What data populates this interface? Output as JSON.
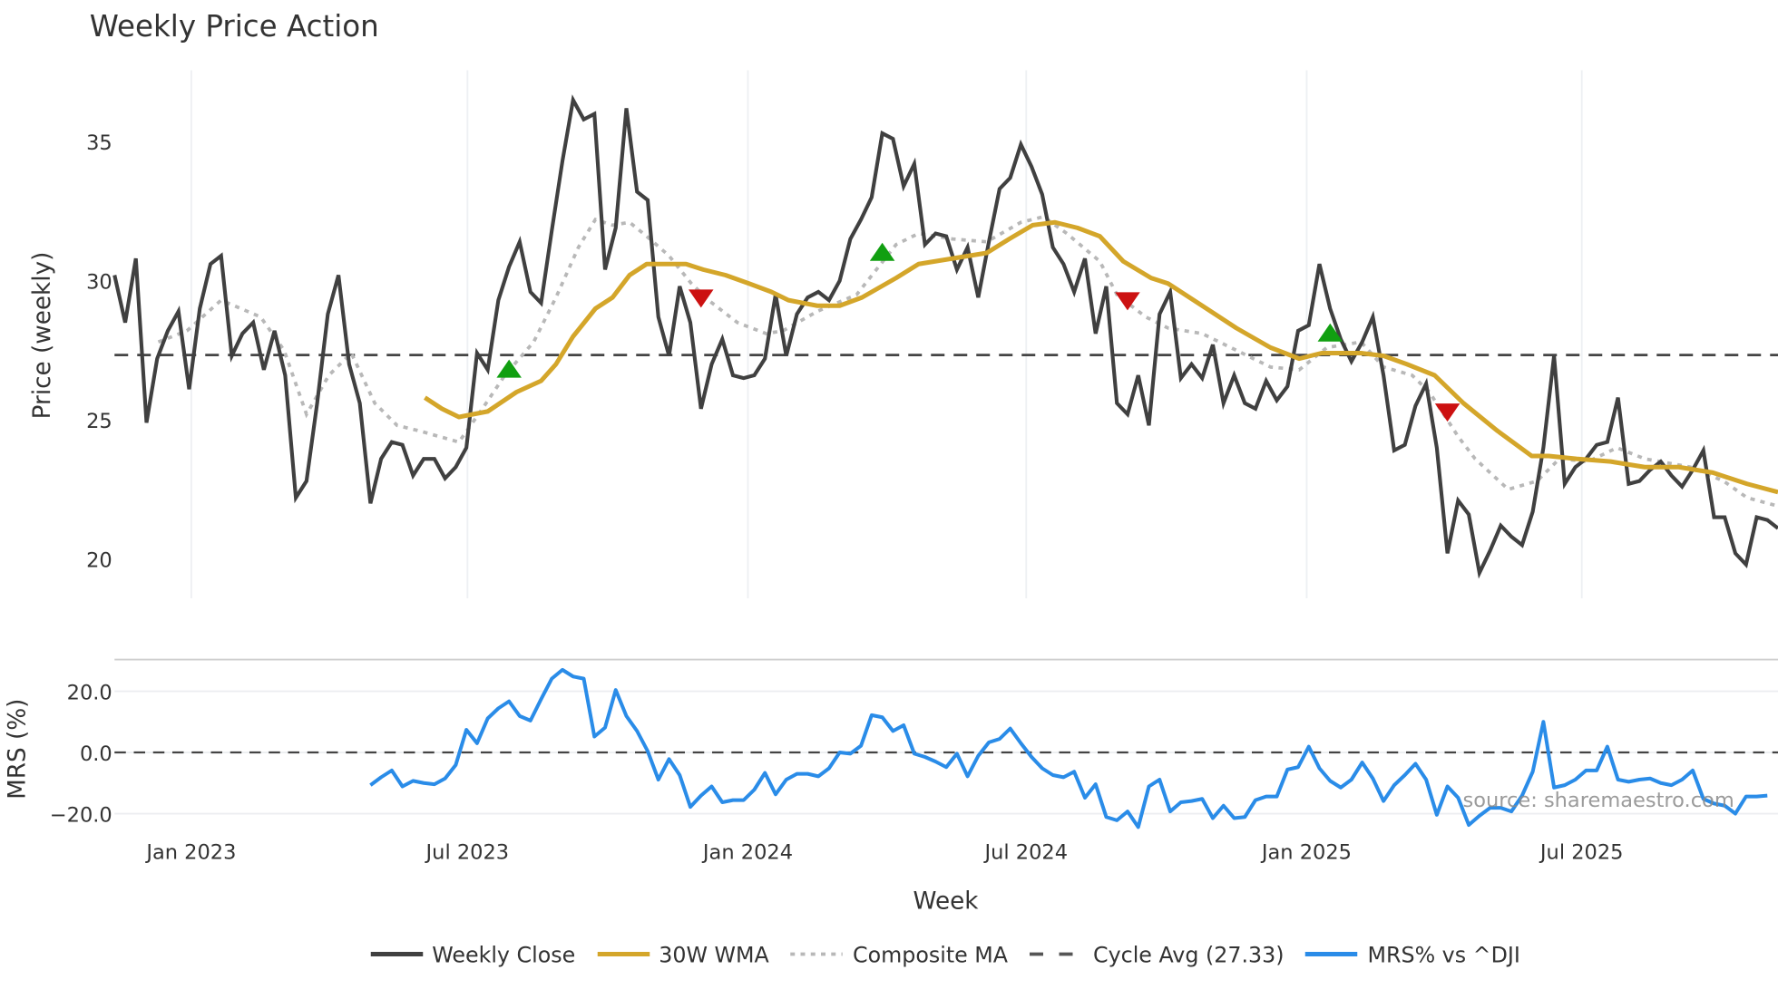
{
  "chart_data": [
    {
      "type": "line",
      "title": "Weekly Price Action",
      "ylabel": "Price (weekly)",
      "ylim": [
        18.6,
        37.5
      ],
      "yticks": [
        20,
        25,
        30,
        35
      ],
      "x_index_range": [
        0,
        156
      ],
      "xticks": [
        {
          "index": 7.2,
          "label": "Jan 2023"
        },
        {
          "index": 33.1,
          "label": "Jul 2023"
        },
        {
          "index": 59.4,
          "label": "Jan 2024"
        },
        {
          "index": 85.5,
          "label": "Jul 2024"
        },
        {
          "index": 111.8,
          "label": "Jan 2025"
        },
        {
          "index": 137.6,
          "label": "Jul 2025"
        }
      ],
      "grid": "vertical",
      "series": [
        {
          "name": "Weekly Close",
          "color": "#404040",
          "values": [
            30.2,
            28.5,
            30.8,
            24.9,
            27.2,
            28.2,
            28.9,
            26.1,
            29.0,
            30.6,
            30.9,
            27.3,
            28.1,
            28.5,
            26.8,
            28.2,
            26.6,
            22.2,
            22.8,
            25.6,
            28.8,
            30.2,
            27.0,
            25.6,
            22.0,
            23.6,
            24.2,
            24.1,
            23.0,
            23.6,
            23.6,
            22.9,
            23.3,
            24.0,
            27.4,
            26.8,
            29.3,
            30.5,
            31.4,
            29.6,
            29.2,
            31.8,
            34.3,
            36.5,
            35.8,
            36.0,
            30.4,
            31.9,
            36.2,
            33.2,
            32.9,
            28.7,
            27.3,
            29.8,
            28.5,
            25.4,
            27.0,
            27.9,
            26.6,
            26.5,
            26.6,
            27.2,
            29.5,
            27.3,
            28.8,
            29.4,
            29.6,
            29.3,
            30.0,
            31.5,
            32.2,
            33.0,
            35.3,
            35.1,
            33.4,
            34.2,
            31.3,
            31.7,
            31.6,
            30.4,
            31.2,
            29.4,
            31.4,
            33.3,
            33.7,
            34.9,
            34.1,
            33.1,
            31.2,
            30.6,
            29.6,
            30.8,
            28.1,
            29.8,
            25.6,
            25.2,
            26.6,
            24.8,
            28.8,
            29.6,
            26.5,
            27.0,
            26.5,
            27.7,
            25.6,
            26.6,
            25.6,
            25.4,
            26.4,
            25.7,
            26.2,
            28.2,
            28.4,
            30.6,
            29.0,
            27.9,
            27.1,
            27.8,
            28.7,
            26.6,
            23.9,
            24.1,
            25.5,
            26.3,
            24.0,
            20.2,
            22.1,
            21.6,
            19.5,
            20.3,
            21.2,
            20.8,
            20.5,
            21.7,
            24.0,
            27.3,
            22.7,
            23.3,
            23.6,
            24.1,
            24.2,
            25.8,
            22.7,
            22.8,
            23.2,
            23.5,
            23.0,
            22.6,
            23.2,
            23.9,
            21.5,
            21.5,
            20.2,
            19.8,
            21.5,
            21.4,
            21.1
          ]
        },
        {
          "name": "30W WMA",
          "color": "#d4a62a",
          "points": [
            [
              29.1,
              25.8
            ],
            [
              30.7,
              25.4
            ],
            [
              32.3,
              25.1
            ],
            [
              35.0,
              25.3
            ],
            [
              37.7,
              26.0
            ],
            [
              40.0,
              26.4
            ],
            [
              41.4,
              27.0
            ],
            [
              43.0,
              28.0
            ],
            [
              45.1,
              29.0
            ],
            [
              46.7,
              29.4
            ],
            [
              48.3,
              30.2
            ],
            [
              49.9,
              30.6
            ],
            [
              51.5,
              30.6
            ],
            [
              53.6,
              30.6
            ],
            [
              55.2,
              30.4
            ],
            [
              57.3,
              30.2
            ],
            [
              59.5,
              29.9
            ],
            [
              61.6,
              29.6
            ],
            [
              63.2,
              29.3
            ],
            [
              65.9,
              29.1
            ],
            [
              68.0,
              29.1
            ],
            [
              70.1,
              29.4
            ],
            [
              73.3,
              30.1
            ],
            [
              75.4,
              30.6
            ],
            [
              78.6,
              30.8
            ],
            [
              81.8,
              31.0
            ],
            [
              83.9,
              31.5
            ],
            [
              86.1,
              32.0
            ],
            [
              88.2,
              32.1
            ],
            [
              90.3,
              31.9
            ],
            [
              92.4,
              31.6
            ],
            [
              94.6,
              30.7
            ],
            [
              97.2,
              30.1
            ],
            [
              98.8,
              29.9
            ],
            [
              102.0,
              29.1
            ],
            [
              105.2,
              28.3
            ],
            [
              108.4,
              27.6
            ],
            [
              111.1,
              27.2
            ],
            [
              113.2,
              27.4
            ],
            [
              116.9,
              27.4
            ],
            [
              119.0,
              27.3
            ],
            [
              121.2,
              27.0
            ],
            [
              123.8,
              26.6
            ],
            [
              126.5,
              25.6
            ],
            [
              129.7,
              24.6
            ],
            [
              132.9,
              23.7
            ],
            [
              134.5,
              23.7
            ],
            [
              137.1,
              23.6
            ],
            [
              140.3,
              23.5
            ],
            [
              143.5,
              23.3
            ],
            [
              146.7,
              23.3
            ],
            [
              149.9,
              23.1
            ],
            [
              153.1,
              22.7
            ],
            [
              156,
              22.4
            ]
          ]
        },
        {
          "name": "Composite MA",
          "color": "#b3b3b3",
          "points": [
            [
              4.1,
              27.8
            ],
            [
              6.8,
              28.2
            ],
            [
              10.0,
              29.3
            ],
            [
              13.7,
              28.7
            ],
            [
              15.9,
              27.5
            ],
            [
              18.0,
              25.2
            ],
            [
              20.1,
              26.6
            ],
            [
              22.2,
              27.4
            ],
            [
              24.4,
              25.6
            ],
            [
              26.5,
              24.8
            ],
            [
              28.6,
              24.6
            ],
            [
              32.3,
              24.2
            ],
            [
              34.5,
              25.4
            ],
            [
              36.6,
              26.6
            ],
            [
              39.3,
              27.8
            ],
            [
              41.4,
              29.4
            ],
            [
              43.5,
              31.2
            ],
            [
              45.1,
              32.2
            ],
            [
              46.7,
              32.0
            ],
            [
              48.3,
              32.1
            ],
            [
              49.9,
              31.6
            ],
            [
              52.0,
              30.9
            ],
            [
              54.1,
              29.9
            ],
            [
              55.7,
              29.3
            ],
            [
              58.4,
              28.5
            ],
            [
              61.1,
              28.1
            ],
            [
              62.7,
              28.2
            ],
            [
              65.9,
              28.9
            ],
            [
              69.6,
              29.5
            ],
            [
              73.3,
              31.3
            ],
            [
              75.4,
              31.7
            ],
            [
              78.6,
              31.5
            ],
            [
              81.8,
              31.4
            ],
            [
              85.0,
              32.1
            ],
            [
              87.1,
              32.3
            ],
            [
              89.3,
              31.7
            ],
            [
              92.4,
              30.7
            ],
            [
              94.0,
              29.5
            ],
            [
              96.7,
              28.7
            ],
            [
              98.8,
              28.3
            ],
            [
              102.0,
              28.1
            ],
            [
              105.2,
              27.5
            ],
            [
              108.4,
              26.9
            ],
            [
              111.1,
              26.8
            ],
            [
              113.7,
              27.6
            ],
            [
              116.9,
              27.8
            ],
            [
              119.0,
              26.9
            ],
            [
              121.7,
              26.6
            ],
            [
              123.3,
              26.0
            ],
            [
              126.0,
              24.4
            ],
            [
              127.6,
              23.6
            ],
            [
              130.7,
              22.5
            ],
            [
              133.4,
              22.8
            ],
            [
              135.5,
              23.6
            ],
            [
              138.2,
              23.5
            ],
            [
              140.9,
              24.0
            ],
            [
              143.5,
              23.6
            ],
            [
              147.8,
              23.3
            ],
            [
              150.9,
              22.8
            ],
            [
              153.1,
              22.2
            ],
            [
              156,
              21.9
            ]
          ]
        },
        {
          "name": "Cycle Avg (27.33)",
          "color": "#444444",
          "value": 27.33
        }
      ],
      "markers": {
        "buy": {
          "color": "#119f11",
          "points": [
            [
              37.0,
              26.8
            ],
            [
              72.0,
              31.0
            ],
            [
              114.0,
              28.1
            ]
          ]
        },
        "sell": {
          "color": "#cc1111",
          "points": [
            [
              55.0,
              29.4
            ],
            [
              95.0,
              29.3
            ],
            [
              125.0,
              25.3
            ]
          ]
        }
      }
    },
    {
      "type": "line",
      "ylabel": "MRS (%)",
      "xlabel": "Week",
      "ylim": [
        -27,
        30
      ],
      "yticks": [
        {
          "value": 20,
          "label": "20.0"
        },
        {
          "value": 0,
          "label": "0.0"
        },
        {
          "value": -20,
          "label": "−20.0"
        }
      ],
      "zero_line": 0,
      "series": [
        {
          "name": "MRS% vs ^DJI",
          "color": "#2a8ce8",
          "start_index": 24,
          "values": [
            -10.7,
            -8.1,
            -5.9,
            -11.1,
            -9.3,
            -10.0,
            -10.4,
            -8.5,
            -4.1,
            7.4,
            3.0,
            11.1,
            14.4,
            16.7,
            11.9,
            10.4,
            17.4,
            24.1,
            27.0,
            24.8,
            24.1,
            5.2,
            8.1,
            20.4,
            11.9,
            7.0,
            0.4,
            -8.9,
            -2.2,
            -7.4,
            -17.8,
            -14.1,
            -11.1,
            -16.3,
            -15.6,
            -15.6,
            -12.2,
            -6.7,
            -13.7,
            -8.9,
            -7.0,
            -7.0,
            -7.8,
            -5.2,
            0.0,
            -0.4,
            2.2,
            12.2,
            11.5,
            7.0,
            8.9,
            -0.4,
            -1.5,
            -3.0,
            -4.8,
            -0.4,
            -7.8,
            -1.1,
            3.3,
            4.4,
            7.8,
            3.0,
            -1.5,
            -5.2,
            -7.4,
            -8.1,
            -6.3,
            -14.8,
            -10.4,
            -21.1,
            -22.2,
            -19.3,
            -24.4,
            -11.1,
            -8.9,
            -19.3,
            -16.3,
            -15.9,
            -15.2,
            -21.5,
            -17.4,
            -21.5,
            -21.1,
            -15.6,
            -14.4,
            -14.4,
            -5.6,
            -4.8,
            1.9,
            -5.2,
            -9.3,
            -11.5,
            -8.9,
            -3.3,
            -8.5,
            -15.9,
            -10.7,
            -7.4,
            -3.7,
            -8.9,
            -20.4,
            -11.1,
            -14.8,
            -23.7,
            -20.7,
            -18.1,
            -18.1,
            -19.3,
            -14.1,
            -6.3,
            10.0,
            -11.5,
            -10.7,
            -8.9,
            -5.9,
            -5.9,
            1.9,
            -8.9,
            -9.6,
            -8.9,
            -8.5,
            -10.0,
            -10.7,
            -8.9,
            -5.9,
            -15.2,
            -16.7,
            -17.4,
            -20.0,
            -14.4,
            -14.4,
            -14.1
          ]
        }
      ]
    }
  ],
  "legend": {
    "placement": "bottom-center",
    "items": [
      {
        "label": "Weekly Close",
        "style": "solid",
        "color": "#404040"
      },
      {
        "label": "30W WMA",
        "style": "solid",
        "color": "#d4a62a"
      },
      {
        "label": "Composite MA",
        "style": "dotted",
        "color": "#b3b3b3"
      },
      {
        "label": "Cycle Avg (27.33)",
        "style": "dashed",
        "color": "#444444"
      },
      {
        "label": "MRS% vs ^DJI",
        "style": "solid",
        "color": "#2a8ce8"
      }
    ]
  },
  "watermark": "source: sharemaestro.com"
}
